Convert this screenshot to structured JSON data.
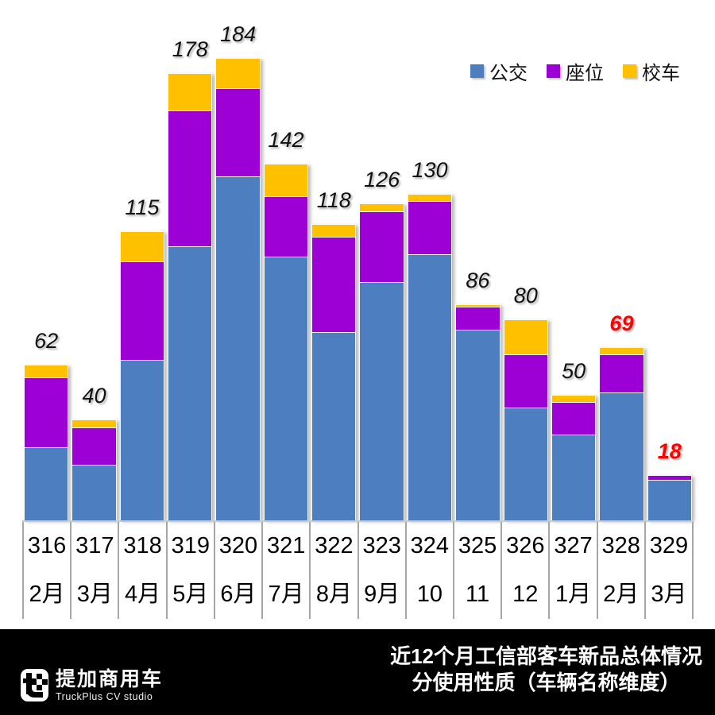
{
  "chart_data": {
    "type": "bar",
    "stacked": true,
    "title": "近12个月工信部客车新品总体情况",
    "subtitle": "分使用性质（车辆名称维度）",
    "categories_batch": [
      "316",
      "317",
      "318",
      "319",
      "320",
      "321",
      "322",
      "323",
      "324",
      "325",
      "326",
      "327",
      "328",
      "329"
    ],
    "categories_month": [
      "2月",
      "3月",
      "4月",
      "5月",
      "6月",
      "7月",
      "8月",
      "9月",
      "10月",
      "11月",
      "12月",
      "1月",
      "2月",
      "3月"
    ],
    "series": [
      {
        "name": "公交",
        "color": "#4D7EBF",
        "values": [
          29,
          22,
          64,
          109,
          137,
          105,
          75,
          95,
          106,
          76,
          45,
          34,
          51,
          16
        ]
      },
      {
        "name": "座位",
        "color": "#9C00D4",
        "values": [
          28,
          15,
          39,
          54,
          35,
          24,
          38,
          28,
          21,
          9,
          21,
          13,
          15,
          2
        ]
      },
      {
        "name": "校车",
        "color": "#FFC000",
        "values": [
          5,
          3,
          12,
          15,
          12,
          13,
          5,
          3,
          3,
          1,
          14,
          3,
          3,
          0
        ]
      }
    ],
    "totals": [
      62,
      40,
      115,
      178,
      184,
      142,
      118,
      126,
      130,
      86,
      80,
      50,
      69,
      18
    ],
    "total_label_colors": [
      "#111111",
      "#111111",
      "#111111",
      "#111111",
      "#111111",
      "#111111",
      "#111111",
      "#111111",
      "#111111",
      "#111111",
      "#111111",
      "#111111",
      "#FF0000",
      "#FF0000"
    ],
    "legend_position": "top-right",
    "ylim": [
      0,
      200
    ],
    "grid": false
  },
  "legend": {
    "items": [
      {
        "label": "公交",
        "color": "#4D7EBF"
      },
      {
        "label": "座位",
        "color": "#9C00D4"
      },
      {
        "label": "校车",
        "color": "#FFC000"
      }
    ]
  },
  "footer": {
    "brand_cn": "提加商用车",
    "brand_en": "TruckPlus CV studio",
    "title_line1": "近12个月工信部客车新品总体情况",
    "title_line2": "分使用性质（车辆名称维度）",
    "bg": "#000000",
    "text_color": "#FFFFFF"
  }
}
